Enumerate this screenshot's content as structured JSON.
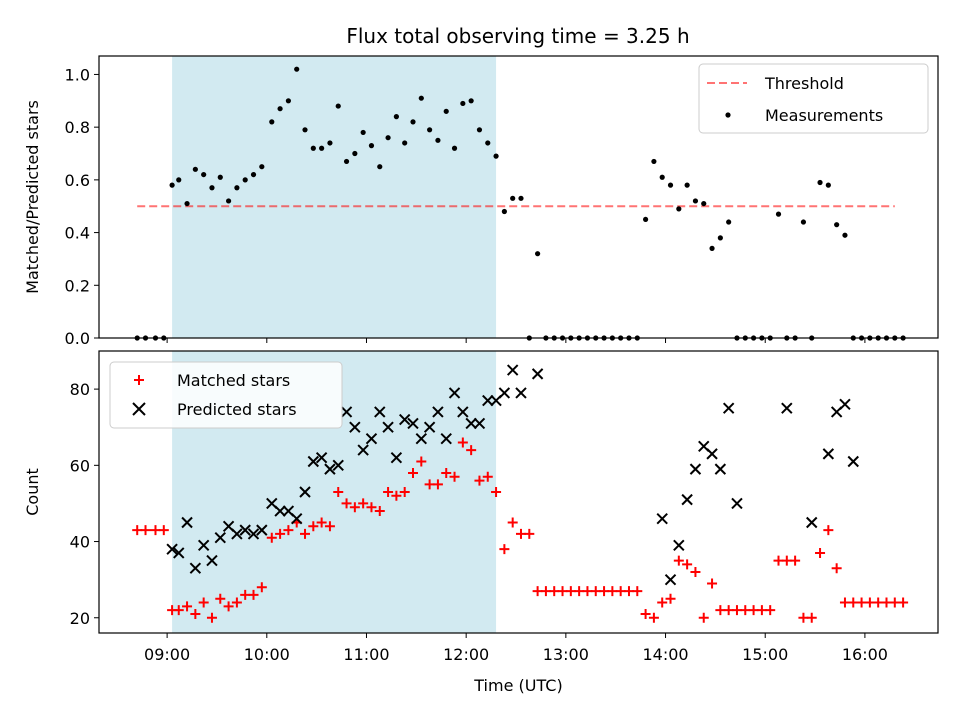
{
  "title": "Flux total observing time = 3.25 h",
  "colors": {
    "threshold": "#ff0000",
    "measurements": "#000000",
    "matched": "#ff0000",
    "predicted": "#000000",
    "shade": "#add8e6"
  },
  "chart_data": [
    {
      "type": "scatter",
      "ylabel": "Matched/Predicted stars",
      "xlim": [
        "08:19",
        "16:44"
      ],
      "ylim": [
        0,
        1.07
      ],
      "yticks": [
        "0.0",
        "0.2",
        "0.4",
        "0.6",
        "0.8",
        "1.0"
      ],
      "shaded_interval": [
        "09:03",
        "12:18"
      ],
      "legend": {
        "placement": "upper-right",
        "entries": [
          "Threshold",
          "Measurements"
        ]
      },
      "threshold": {
        "name": "Threshold",
        "value": 0.5,
        "x": [
          "08:42",
          "16:18"
        ],
        "style": "dashed"
      },
      "series": [
        {
          "name": "Measurements",
          "marker": "dot",
          "x": [
            "08:42",
            "08:47",
            "08:53",
            "08:58",
            "09:03",
            "09:07",
            "09:12",
            "09:17",
            "09:22",
            "09:27",
            "09:32",
            "09:37",
            "09:42",
            "09:47",
            "09:52",
            "09:57",
            "10:03",
            "10:08",
            "10:13",
            "10:18",
            "10:23",
            "10:28",
            "10:33",
            "10:38",
            "10:43",
            "10:48",
            "10:53",
            "10:58",
            "11:03",
            "11:08",
            "11:13",
            "11:18",
            "11:23",
            "11:28",
            "11:33",
            "11:38",
            "11:43",
            "11:48",
            "11:53",
            "11:58",
            "12:03",
            "12:08",
            "12:13",
            "12:18",
            "12:23",
            "12:28",
            "12:33",
            "12:38",
            "12:43",
            "12:48",
            "12:53",
            "12:58",
            "13:03",
            "13:08",
            "13:13",
            "13:18",
            "13:23",
            "13:28",
            "13:33",
            "13:38",
            "13:43",
            "13:48",
            "13:53",
            "13:58",
            "14:03",
            "14:08",
            "14:13",
            "14:18",
            "14:23",
            "14:28",
            "14:33",
            "14:38",
            "14:43",
            "14:48",
            "14:53",
            "14:58",
            "15:03",
            "15:08",
            "15:13",
            "15:18",
            "15:23",
            "15:28",
            "15:33",
            "15:38",
            "15:43",
            "15:48",
            "15:53",
            "15:58",
            "16:03",
            "16:08",
            "16:13",
            "16:18",
            "16:23"
          ],
          "y": [
            0,
            0,
            0,
            0,
            0.58,
            0.6,
            0.51,
            0.64,
            0.62,
            0.57,
            0.61,
            0.52,
            0.57,
            0.6,
            0.62,
            0.65,
            0.82,
            0.87,
            0.9,
            1.02,
            0.79,
            0.72,
            0.72,
            0.74,
            0.88,
            0.67,
            0.7,
            0.78,
            0.73,
            0.65,
            0.76,
            0.84,
            0.74,
            0.82,
            0.91,
            0.79,
            0.75,
            0.86,
            0.72,
            0.89,
            0.9,
            0.79,
            0.74,
            0.69,
            0.48,
            0.53,
            0.53,
            0,
            0.32,
            0,
            0,
            0,
            0,
            0,
            0,
            0,
            0,
            0,
            0,
            0,
            0,
            0.45,
            0.67,
            0.61,
            0.58,
            0.49,
            0.58,
            0.52,
            0.51,
            0.34,
            0.38,
            0.44,
            0,
            0,
            0,
            0,
            0,
            0.47,
            0,
            0,
            0.44,
            0,
            0.59,
            0.58,
            0.43,
            0.39,
            0,
            0,
            0,
            0,
            0,
            0,
            0
          ]
        }
      ]
    },
    {
      "type": "scatter",
      "xlabel": "Time (UTC)",
      "ylabel": "Count",
      "xlim": [
        "08:19",
        "16:44"
      ],
      "ylim": [
        16,
        90
      ],
      "yticks": [
        "20",
        "40",
        "60",
        "80"
      ],
      "xticks": [
        "09:00",
        "10:00",
        "11:00",
        "12:00",
        "13:00",
        "14:00",
        "15:00",
        "16:00"
      ],
      "shaded_interval": [
        "09:03",
        "12:18"
      ],
      "legend": {
        "placement": "upper-left",
        "entries": [
          "Matched stars",
          "Predicted stars"
        ]
      },
      "series": [
        {
          "name": "Matched stars",
          "marker": "plus",
          "x": [
            "08:42",
            "08:47",
            "08:53",
            "08:58",
            "09:03",
            "09:07",
            "09:12",
            "09:17",
            "09:22",
            "09:27",
            "09:32",
            "09:37",
            "09:42",
            "09:47",
            "09:52",
            "09:57",
            "10:03",
            "10:08",
            "10:13",
            "10:18",
            "10:23",
            "10:28",
            "10:33",
            "10:38",
            "10:43",
            "10:48",
            "10:53",
            "10:58",
            "11:03",
            "11:08",
            "11:13",
            "11:18",
            "11:23",
            "11:28",
            "11:33",
            "11:38",
            "11:43",
            "11:48",
            "11:53",
            "11:58",
            "12:03",
            "12:08",
            "12:13",
            "12:18",
            "12:23",
            "12:28",
            "12:33",
            "12:38",
            "12:43",
            "12:48",
            "12:53",
            "12:58",
            "13:03",
            "13:08",
            "13:13",
            "13:18",
            "13:23",
            "13:28",
            "13:33",
            "13:38",
            "13:43",
            "13:48",
            "13:53",
            "13:58",
            "14:03",
            "14:08",
            "14:13",
            "14:18",
            "14:23",
            "14:28",
            "14:33",
            "14:38",
            "14:43",
            "14:48",
            "14:53",
            "14:58",
            "15:03",
            "15:08",
            "15:13",
            "15:18",
            "15:23",
            "15:28",
            "15:33",
            "15:38",
            "15:43",
            "15:48",
            "15:53",
            "15:58",
            "16:03",
            "16:08",
            "16:13",
            "16:18",
            "16:23"
          ],
          "y": [
            43,
            43,
            43,
            43,
            22,
            22,
            23,
            21,
            24,
            20,
            25,
            23,
            24,
            26,
            26,
            28,
            41,
            42,
            43,
            45,
            42,
            44,
            45,
            44,
            53,
            50,
            49,
            50,
            49,
            48,
            53,
            52,
            53,
            58,
            61,
            55,
            55,
            58,
            57,
            66,
            64,
            56,
            57,
            53,
            38,
            45,
            42,
            42,
            27,
            27,
            27,
            27,
            27,
            27,
            27,
            27,
            27,
            27,
            27,
            27,
            27,
            21,
            20,
            24,
            25,
            35,
            34,
            32,
            20,
            29,
            22,
            22,
            22,
            22,
            22,
            22,
            22,
            35,
            35,
            35,
            20,
            20,
            37,
            43,
            33,
            24,
            24,
            24,
            24,
            24,
            24,
            24,
            24
          ]
        },
        {
          "name": "Predicted stars",
          "marker": "x",
          "x": [
            "09:03",
            "09:07",
            "09:12",
            "09:17",
            "09:22",
            "09:27",
            "09:32",
            "09:37",
            "09:42",
            "09:47",
            "09:52",
            "09:57",
            "10:03",
            "10:08",
            "10:13",
            "10:18",
            "10:23",
            "10:28",
            "10:33",
            "10:38",
            "10:43",
            "10:48",
            "10:53",
            "10:58",
            "11:03",
            "11:08",
            "11:13",
            "11:18",
            "11:23",
            "11:28",
            "11:33",
            "11:38",
            "11:43",
            "11:48",
            "11:53",
            "11:58",
            "12:03",
            "12:08",
            "12:13",
            "12:18",
            "12:23",
            "12:28",
            "12:33",
            "12:43",
            "13:58",
            "14:03",
            "14:08",
            "14:13",
            "14:18",
            "14:23",
            "14:28",
            "14:33",
            "14:38",
            "14:43",
            "15:13",
            "15:28",
            "15:38",
            "15:43",
            "15:48",
            "15:53"
          ],
          "y": [
            38,
            37,
            45,
            33,
            39,
            35,
            41,
            44,
            42,
            43,
            42,
            43,
            50,
            48,
            48,
            46,
            53,
            61,
            62,
            59,
            60,
            74,
            70,
            64,
            67,
            74,
            70,
            62,
            72,
            71,
            67,
            70,
            74,
            67,
            79,
            74,
            71,
            71,
            77,
            77,
            79,
            85,
            79,
            84,
            46,
            30,
            39,
            51,
            59,
            65,
            63,
            59,
            75,
            50,
            75,
            45,
            63,
            74,
            76,
            61
          ]
        }
      ]
    }
  ]
}
